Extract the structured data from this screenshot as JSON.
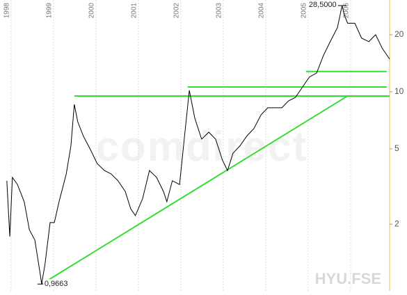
{
  "chart_data": {
    "type": "line",
    "watermark": "comdirect",
    "symbol": "HYU.FSE",
    "log_scale": true,
    "xlim": [
      1997.87,
      2006.92
    ],
    "xticks": [
      1998,
      1999,
      2000,
      2001,
      2002,
      2003,
      2004,
      2005,
      2006
    ],
    "ylim": [
      0.89,
      30.5
    ],
    "yticks": [
      2,
      5,
      10,
      20
    ],
    "series": [
      {
        "color": "#000000",
        "x": [
          1997.9,
          1997.97,
          1998.03,
          1998.15,
          1998.31,
          1998.43,
          1998.56,
          1998.69,
          1998.72,
          1998.8,
          1998.92,
          1999.02,
          1999.13,
          1999.3,
          1999.41,
          1999.49,
          1999.57,
          1999.7,
          1999.87,
          2000.03,
          2000.2,
          2000.36,
          2000.52,
          2000.69,
          2000.82,
          2000.93,
          2001.1,
          2001.26,
          2001.43,
          2001.59,
          2001.67,
          2001.8,
          2001.97,
          2002.08,
          2002.2,
          2002.33,
          2002.49,
          2002.66,
          2002.82,
          2002.98,
          2003.1,
          2003.23,
          2003.39,
          2003.56,
          2003.72,
          2003.89,
          2004.05,
          2004.21,
          2004.38,
          2004.54,
          2004.7,
          2004.87,
          2005.03,
          2005.2,
          2005.36,
          2005.52,
          2005.69,
          2005.8,
          2005.85,
          2005.93,
          2006.1,
          2006.26,
          2006.43,
          2006.59,
          2006.75,
          2006.92
        ],
        "values": [
          3.39,
          1.72,
          3.53,
          3.24,
          2.63,
          1.87,
          1.65,
          1.08,
          0.9663,
          1.23,
          2.04,
          2.04,
          2.63,
          3.68,
          5.17,
          8.58,
          6.95,
          5.86,
          4.95,
          4.18,
          3.84,
          3.68,
          3.39,
          2.98,
          2.41,
          2.22,
          2.73,
          3.84,
          3.53,
          2.98,
          2.63,
          3.39,
          3.24,
          5.62,
          10.17,
          7.25,
          5.62,
          6.12,
          5.62,
          4.36,
          3.84,
          4.74,
          5.17,
          5.86,
          6.38,
          7.56,
          8.23,
          8.23,
          8.23,
          8.96,
          9.34,
          10.61,
          11.96,
          12.56,
          15.52,
          18.38,
          21.81,
          28.5,
          25.6,
          23.0,
          23.0,
          19.2,
          18.38,
          20.0,
          16.9,
          14.88
        ]
      }
    ],
    "trendlines": [
      {
        "color": "#33dd33",
        "x": [
          1999.49,
          2006.92
        ],
        "y": [
          9.5,
          9.5
        ]
      },
      {
        "color": "#33dd33",
        "x": [
          2002.16,
          2006.85
        ],
        "y": [
          10.6,
          10.6
        ]
      },
      {
        "color": "#33dd33",
        "x": [
          2004.95,
          2006.85
        ],
        "y": [
          12.8,
          12.8
        ]
      },
      {
        "color": "#33dd33",
        "x": [
          1998.72,
          2005.93
        ],
        "y": [
          0.9663,
          9.5
        ]
      }
    ],
    "annotations": [
      {
        "x": 2005.8,
        "value": {
          "value": 28.5,
          "label": "28,5000"
        }
      },
      {
        "x": 1998.72,
        "value": {
          "value": 0.9663,
          "label": "0,9663"
        }
      }
    ]
  }
}
